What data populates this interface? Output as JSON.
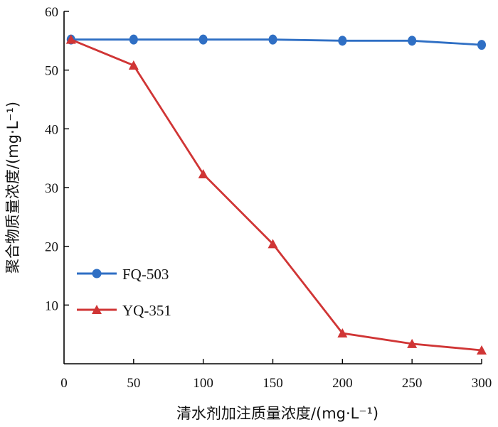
{
  "chart_data": {
    "type": "line",
    "xlabel": "清水剂加注质量浓度/(mg·L⁻¹)",
    "ylabel": "聚合物质量浓度/(mg·L⁻¹)",
    "x": [
      5,
      50,
      100,
      150,
      200,
      250,
      300
    ],
    "xticks": [
      "0",
      "50",
      "100",
      "150",
      "200",
      "250",
      "300"
    ],
    "yticks": [
      "10",
      "20",
      "30",
      "40",
      "50",
      "60"
    ],
    "xlim": [
      0,
      300
    ],
    "ylim": [
      0,
      60
    ],
    "grid": false,
    "legend_position": "middle-left",
    "series": [
      {
        "name": "FQ-503",
        "color": "#2f6fc4",
        "marker": "circle",
        "values": [
          55.2,
          55.2,
          55.2,
          55.2,
          55.0,
          55.0,
          54.3
        ]
      },
      {
        "name": "YQ-351",
        "color": "#d03535",
        "marker": "triangle",
        "values": [
          55.2,
          50.8,
          32.3,
          20.4,
          5.2,
          3.4,
          2.3
        ]
      }
    ]
  }
}
